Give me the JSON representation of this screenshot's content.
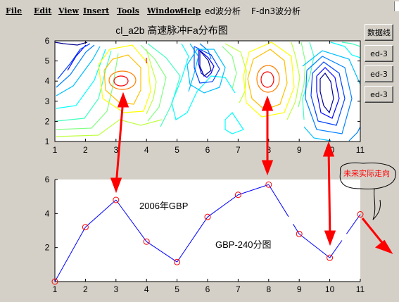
{
  "menu": {
    "items": [
      "File",
      "Edit",
      "View",
      "Insert",
      "Tools",
      "Window",
      "Help",
      "ed波分析",
      "F-dn3波分析"
    ]
  },
  "side_buttons": [
    "数据线",
    "ed-3",
    "ed-3",
    "ed-3"
  ],
  "top_plot": {
    "title": "cl_a2b 高速脉冲Fa分布图",
    "x_ticks": [
      "1",
      "2",
      "3",
      "4",
      "5",
      "6",
      "7",
      "8",
      "9",
      "10",
      "11"
    ],
    "y_ticks": [
      "1",
      "2",
      "3",
      "4",
      "5",
      "6"
    ]
  },
  "bottom_plot": {
    "x_ticks": [
      "1",
      "2",
      "3",
      "4",
      "5",
      "6",
      "7",
      "8",
      "9",
      "10",
      "11"
    ],
    "y_ticks": [
      "2",
      "4",
      "6"
    ],
    "label_2006": "2006年GBP",
    "label_240": "GBP-240分图"
  },
  "annotation": {
    "future_label": "未来实际走向"
  },
  "chart_data": [
    {
      "type": "heatmap",
      "title": "cl_a2b 高速脉冲Fa分布图",
      "xlim": [
        1,
        11
      ],
      "ylim": [
        1,
        6
      ],
      "grid": false
    },
    {
      "type": "line",
      "x": [
        1,
        2,
        3,
        4,
        5,
        6,
        7,
        8,
        9,
        10,
        11
      ],
      "y": [
        0,
        3.2,
        4.8,
        2.35,
        1.15,
        3.8,
        5.1,
        5.7,
        2.8,
        1.4,
        3.95
      ],
      "xlim": [
        1,
        11
      ],
      "ylim": [
        0,
        6
      ],
      "line_color": "#0000ff",
      "marker_color": "#ff0000",
      "grid": false
    }
  ],
  "colors": {
    "window_bg": "#d4d0c8",
    "arrow_red": "#ff0000",
    "series_line": "#0000ff"
  }
}
